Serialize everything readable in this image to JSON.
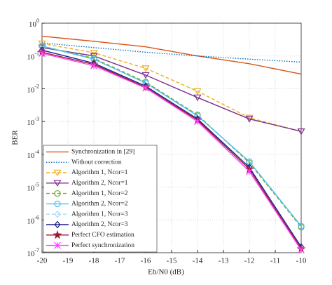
{
  "chart_data": {
    "type": "line",
    "x_label": "Eb/N0 (dB)",
    "y_label": "BER",
    "log_y": true,
    "grid": true,
    "legend": "lower left",
    "x": [
      -20,
      -18,
      -16,
      -14,
      -12,
      -10
    ],
    "xlim": [
      -20,
      -10
    ],
    "xticks": [
      -20,
      -19,
      -18,
      -17,
      -16,
      -15,
      -14,
      -13,
      -12,
      -11,
      -10
    ],
    "ylim": [
      1e-07,
      1
    ],
    "yticks": [
      {
        "value": 1e-07,
        "label": "10^-7"
      },
      {
        "value": 1e-06,
        "label": "10^-6"
      },
      {
        "value": 1e-05,
        "label": "10^-5"
      },
      {
        "value": 0.0001,
        "label": "10^-4"
      },
      {
        "value": 0.001,
        "label": "10^-3"
      },
      {
        "value": 0.01,
        "label": "10^-2"
      },
      {
        "value": 0.1,
        "label": "10^-1"
      },
      {
        "value": 1,
        "label": "10^0"
      }
    ],
    "series": [
      {
        "name": "Synchronization in [29]",
        "color": "#d95319",
        "linestyle": "solid",
        "marker": null,
        "values": [
          0.4,
          0.28,
          0.19,
          0.1,
          0.058,
          0.028
        ]
      },
      {
        "name": "Without correction",
        "color": "#0072bd",
        "linestyle": "dotted",
        "marker": null,
        "values": [
          0.25,
          0.18,
          0.13,
          0.1,
          0.08,
          0.065
        ]
      },
      {
        "name": "Algorithm 1, Ncor=1",
        "color": "#edb120",
        "linestyle": "dashed",
        "marker": "triangle-down",
        "values": [
          0.24,
          0.125,
          0.042,
          0.0084,
          0.0013,
          0.0005
        ]
      },
      {
        "name": "Algorithm 2, Ncor=1",
        "color": "#7e2f8e",
        "linestyle": "solid",
        "marker": "triangle-down",
        "values": [
          0.18,
          0.1,
          0.026,
          0.0054,
          0.0012,
          0.0005
        ]
      },
      {
        "name": "Algorithm 1, Ncor=2",
        "color": "#77ac30",
        "linestyle": "dashed",
        "marker": "circle",
        "values": [
          0.2,
          0.085,
          0.016,
          0.0016,
          5.5e-05,
          6e-07
        ]
      },
      {
        "name": "Algorithm 2, Ncor=2",
        "color": "#4dbeee",
        "linestyle": "solid",
        "marker": "circle",
        "values": [
          0.2,
          0.08,
          0.015,
          0.0015,
          6e-05,
          6.5e-07
        ]
      },
      {
        "name": "Algorithm 1, Ncor=3",
        "color": "#a8dcf2",
        "linestyle": "dashed",
        "marker": "diamond",
        "values": [
          0.15,
          0.06,
          0.012,
          0.0012,
          4e-05,
          1.5e-07
        ]
      },
      {
        "name": "Algorithm 2, Ncor=3",
        "color": "#1c1c8c",
        "linestyle": "solid",
        "marker": "diamond",
        "values": [
          0.15,
          0.06,
          0.012,
          0.0012,
          4e-05,
          1.5e-07
        ]
      },
      {
        "name": "Perfect CFO estimation",
        "color": "#a2142f",
        "linestyle": "solid",
        "marker": "star",
        "values": [
          0.13,
          0.055,
          0.011,
          0.0011,
          3.5e-05,
          1.3e-07
        ]
      },
      {
        "name": "Perfect synchronization",
        "color": "#ff44ff",
        "linestyle": "solid",
        "marker": "x",
        "values": [
          0.12,
          0.05,
          0.0105,
          0.001,
          3e-05,
          1.2e-07
        ]
      }
    ]
  }
}
